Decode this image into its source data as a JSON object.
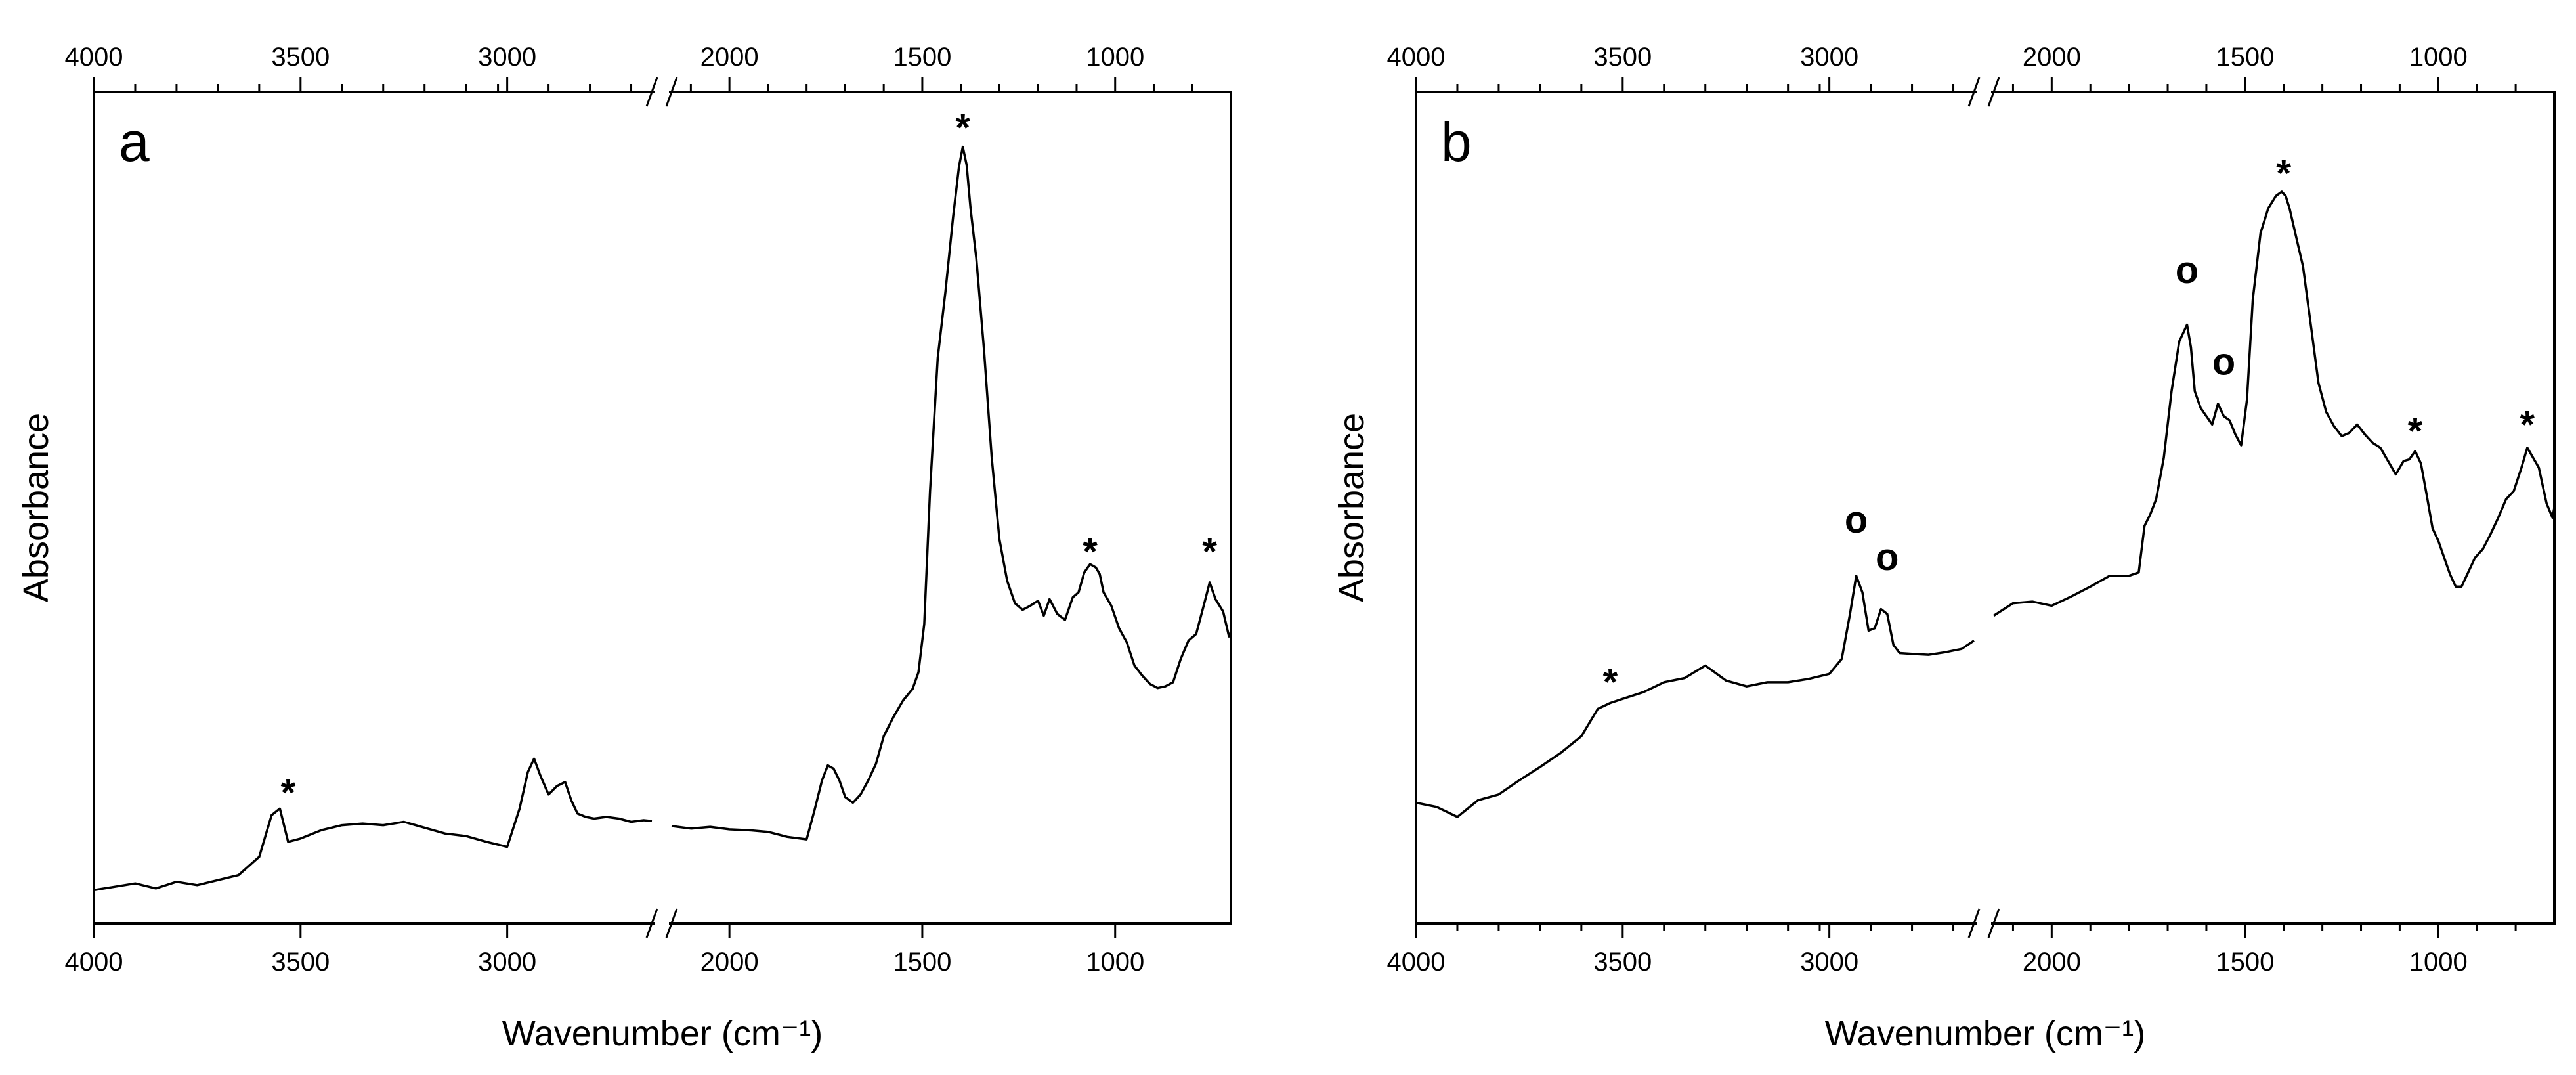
{
  "chart_data": [
    {
      "type": "line",
      "panel_label": "a",
      "xlabel": "Wavenumber (cm⁻¹)",
      "ylabel": "Absorbance",
      "x_reversed": true,
      "x_break": [
        2650,
        2150
      ],
      "xlim": [
        4000,
        700
      ],
      "ylim": [
        0,
        1
      ],
      "xticks_major": [
        4000,
        3500,
        3000,
        2000,
        1500,
        1000
      ],
      "xticks_major_labels": [
        "4000",
        "3500",
        "3000",
        "2000",
        "1500",
        "1000"
      ],
      "xticks_minor": [
        3900,
        3800,
        3700,
        3600,
        3400,
        3300,
        3200,
        3100,
        2900,
        2800,
        2700,
        2600,
        2100,
        1900,
        1800,
        1700,
        1600,
        1400,
        1300,
        1200,
        1100,
        900,
        800
      ],
      "series": [
        {
          "name": "spectrum-a",
          "segments": [
            {
              "x": [
                4000,
                3950,
                3900,
                3850,
                3800,
                3750,
                3700,
                3650,
                3600,
                3570,
                3550,
                3530,
                3500,
                3450,
                3400,
                3350,
                3300,
                3250,
                3200,
                3150,
                3100,
                3050,
                3000,
                2970,
                2950,
                2935,
                2920,
                2900,
                2880,
                2860,
                2845,
                2830,
                2810,
                2790,
                2760,
                2730,
                2700,
                2670,
                2650
              ],
              "y": [
                0.04,
                0.044,
                0.048,
                0.042,
                0.05,
                0.046,
                0.052,
                0.058,
                0.08,
                0.13,
                0.138,
                0.098,
                0.102,
                0.112,
                0.118,
                0.12,
                0.118,
                0.122,
                0.115,
                0.108,
                0.105,
                0.098,
                0.092,
                0.138,
                0.182,
                0.198,
                0.178,
                0.155,
                0.165,
                0.17,
                0.148,
                0.132,
                0.128,
                0.126,
                0.128,
                0.126,
                0.122,
                0.124,
                0.123
              ]
            },
            {
              "x": [
                2150,
                2100,
                2050,
                2000,
                1950,
                1900,
                1850,
                1800,
                1780,
                1760,
                1745,
                1730,
                1715,
                1700,
                1680,
                1660,
                1640,
                1620,
                1600,
                1575,
                1550,
                1525,
                1510,
                1495,
                1480,
                1460,
                1440,
                1420,
                1405,
                1395,
                1385,
                1375,
                1360,
                1340,
                1320,
                1300,
                1280,
                1260,
                1240,
                1220,
                1200,
                1185,
                1170,
                1150,
                1130,
                1110,
                1095,
                1080,
                1065,
                1050,
                1040,
                1030,
                1010,
                990,
                970,
                950,
                930,
                910,
                890,
                870,
                850,
                830,
                810,
                790,
                770,
                755,
                740,
                720,
                705,
                700
              ],
              "y": [
                0.117,
                0.114,
                0.116,
                0.113,
                0.112,
                0.11,
                0.104,
                0.101,
                0.135,
                0.172,
                0.19,
                0.186,
                0.172,
                0.152,
                0.145,
                0.155,
                0.172,
                0.192,
                0.225,
                0.248,
                0.268,
                0.282,
                0.302,
                0.36,
                0.52,
                0.68,
                0.76,
                0.85,
                0.91,
                0.934,
                0.912,
                0.86,
                0.8,
                0.69,
                0.56,
                0.462,
                0.412,
                0.385,
                0.377,
                0.382,
                0.388,
                0.37,
                0.39,
                0.372,
                0.365,
                0.392,
                0.398,
                0.422,
                0.432,
                0.428,
                0.42,
                0.398,
                0.382,
                0.355,
                0.338,
                0.31,
                0.298,
                0.288,
                0.283,
                0.285,
                0.29,
                0.318,
                0.34,
                0.348,
                0.383,
                0.41,
                0.39,
                0.375,
                0.345,
                0.35
              ]
            }
          ]
        }
      ],
      "annotations": [
        {
          "text": "*",
          "x": 3530,
          "y": 0.165
        },
        {
          "text": "*",
          "x": 1395,
          "y": 0.965
        },
        {
          "text": "*",
          "x": 1065,
          "y": 0.455
        },
        {
          "text": "*",
          "x": 755,
          "y": 0.455
        }
      ]
    },
    {
      "type": "line",
      "panel_label": "b",
      "xlabel": "Wavenumber (cm⁻¹)",
      "ylabel": "Absorbance",
      "x_reversed": true,
      "x_break": [
        2650,
        2150
      ],
      "xlim": [
        4000,
        700
      ],
      "ylim": [
        0,
        1
      ],
      "xticks_major": [
        4000,
        3500,
        3000,
        2000,
        1500,
        1000
      ],
      "xticks_major_labels": [
        "4000",
        "3500",
        "3000",
        "2000",
        "1500",
        "1000"
      ],
      "xticks_minor": [
        3900,
        3800,
        3700,
        3600,
        3400,
        3300,
        3200,
        3100,
        2900,
        2800,
        2700,
        2600,
        2100,
        1900,
        1800,
        1700,
        1600,
        1400,
        1300,
        1200,
        1100,
        900,
        800
      ],
      "series": [
        {
          "name": "spectrum-b",
          "segments": [
            {
              "x": [
                4000,
                3950,
                3900,
                3850,
                3800,
                3750,
                3700,
                3650,
                3600,
                3560,
                3530,
                3500,
                3450,
                3400,
                3350,
                3300,
                3250,
                3200,
                3150,
                3100,
                3050,
                3000,
                2970,
                2950,
                2935,
                2920,
                2905,
                2890,
                2875,
                2860,
                2845,
                2830,
                2800,
                2760,
                2720,
                2680,
                2650
              ],
              "y": [
                0.145,
                0.14,
                0.128,
                0.148,
                0.155,
                0.172,
                0.188,
                0.205,
                0.225,
                0.258,
                0.265,
                0.27,
                0.278,
                0.29,
                0.295,
                0.31,
                0.292,
                0.285,
                0.29,
                0.29,
                0.294,
                0.3,
                0.318,
                0.372,
                0.418,
                0.398,
                0.352,
                0.355,
                0.378,
                0.372,
                0.335,
                0.325,
                0.324,
                0.323,
                0.326,
                0.33,
                0.34
              ]
            },
            {
              "x": [
                2150,
                2100,
                2050,
                2000,
                1950,
                1900,
                1850,
                1800,
                1775,
                1760,
                1745,
                1730,
                1710,
                1690,
                1670,
                1650,
                1640,
                1630,
                1615,
                1600,
                1585,
                1570,
                1555,
                1540,
                1525,
                1510,
                1495,
                1480,
                1460,
                1440,
                1420,
                1405,
                1395,
                1385,
                1370,
                1350,
                1330,
                1310,
                1290,
                1270,
                1250,
                1230,
                1210,
                1190,
                1170,
                1150,
                1130,
                1110,
                1090,
                1075,
                1060,
                1045,
                1030,
                1015,
                1000,
                985,
                970,
                955,
                940,
                925,
                905,
                885,
                865,
                845,
                825,
                805,
                785,
                770,
                755,
                740,
                720,
                705,
                700
              ],
              "y": [
                0.37,
                0.385,
                0.387,
                0.382,
                0.393,
                0.405,
                0.418,
                0.418,
                0.422,
                0.478,
                0.492,
                0.51,
                0.56,
                0.64,
                0.7,
                0.72,
                0.693,
                0.64,
                0.62,
                0.61,
                0.6,
                0.625,
                0.61,
                0.605,
                0.588,
                0.575,
                0.63,
                0.75,
                0.83,
                0.86,
                0.875,
                0.88,
                0.875,
                0.86,
                0.83,
                0.79,
                0.72,
                0.65,
                0.615,
                0.598,
                0.586,
                0.59,
                0.6,
                0.588,
                0.578,
                0.572,
                0.556,
                0.54,
                0.556,
                0.558,
                0.568,
                0.553,
                0.515,
                0.475,
                0.46,
                0.44,
                0.42,
                0.405,
                0.405,
                0.42,
                0.44,
                0.45,
                0.468,
                0.488,
                0.51,
                0.52,
                0.548,
                0.572,
                0.56,
                0.548,
                0.505,
                0.488,
                0.5
              ]
            }
          ]
        }
      ],
      "annotations": [
        {
          "text": "*",
          "x": 3530,
          "y": 0.298
        },
        {
          "text": "o",
          "x": 2935,
          "y": 0.47
        },
        {
          "text": "o",
          "x": 2860,
          "y": 0.425
        },
        {
          "text": "o",
          "x": 1650,
          "y": 0.77
        },
        {
          "text": "o",
          "x": 1555,
          "y": 0.66
        },
        {
          "text": "*",
          "x": 1400,
          "y": 0.91
        },
        {
          "text": "*",
          "x": 1060,
          "y": 0.6
        },
        {
          "text": "*",
          "x": 770,
          "y": 0.608
        }
      ]
    }
  ]
}
